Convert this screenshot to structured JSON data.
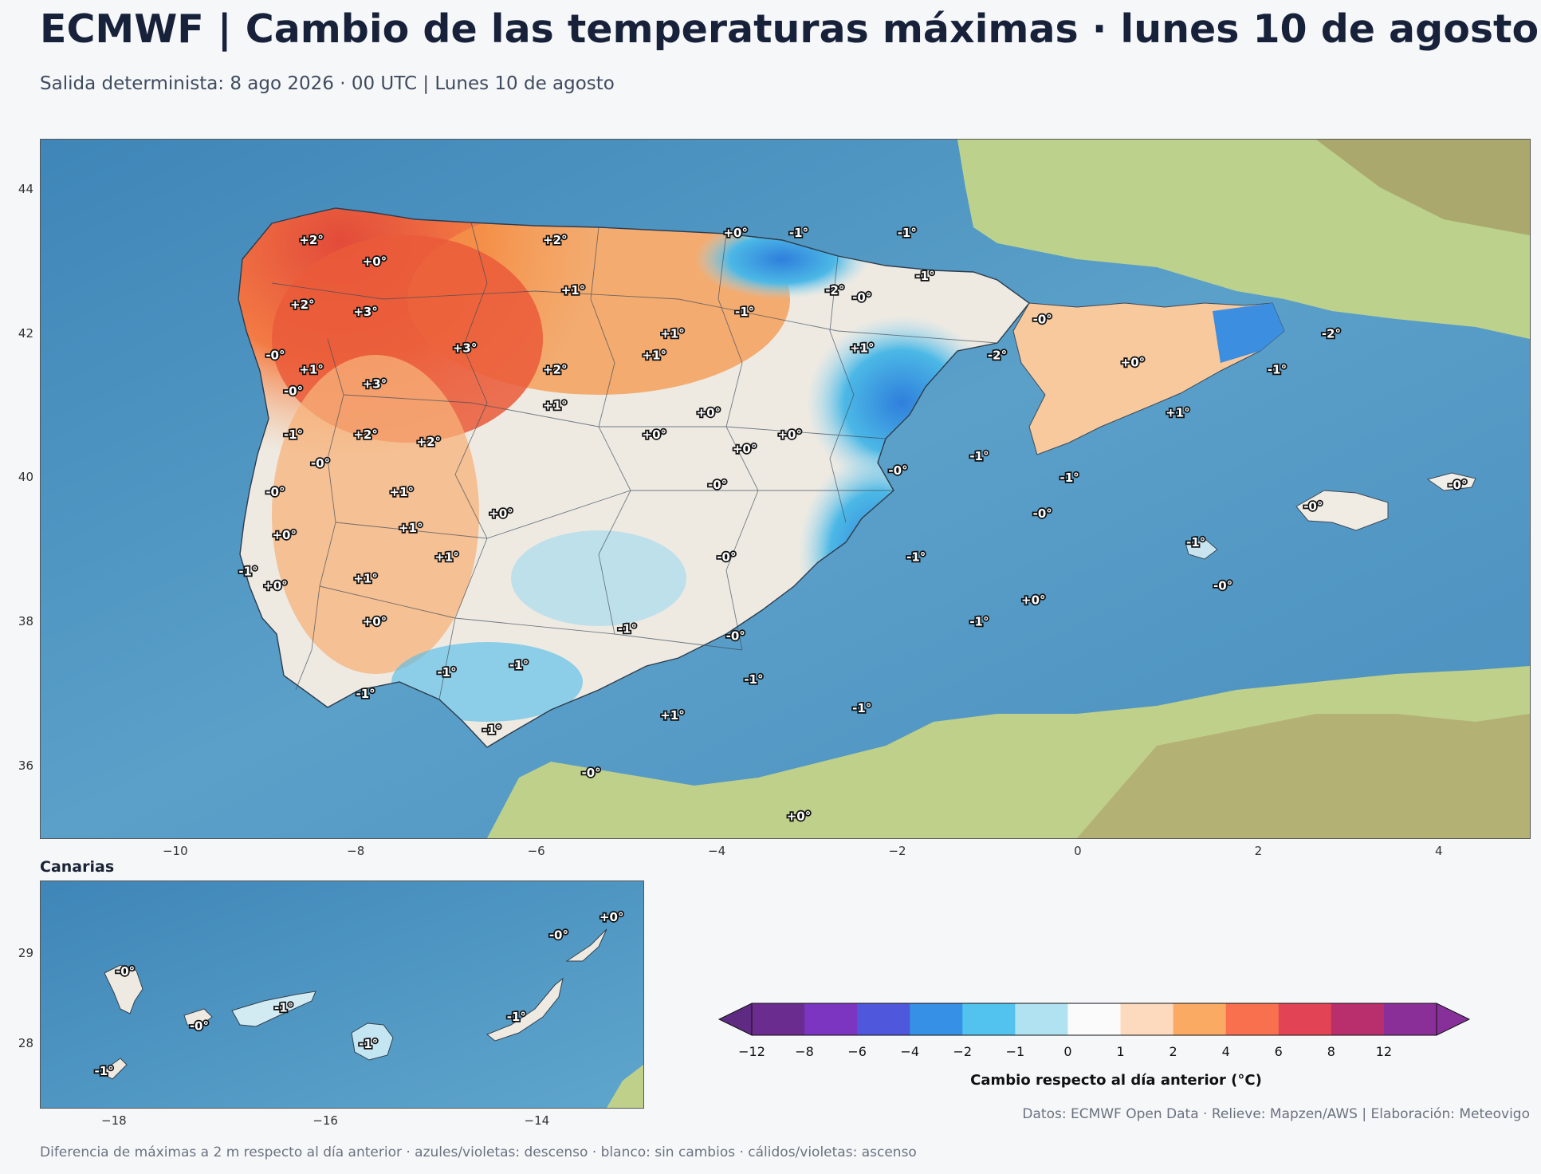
{
  "title": "ECMWF | Cambio de las temperaturas máximas · lunes 10 de agosto",
  "subtitle": "Salida determinista: 8 ago 2026 · 00 UTC  |  Lunes 10 de agosto",
  "main_map": {
    "lon_range": [
      -11.5,
      5.0
    ],
    "lat_range": [
      35.0,
      44.7
    ],
    "x_ticks": [
      "−10",
      "−8",
      "−6",
      "−4",
      "−2",
      "0",
      "2",
      "4"
    ],
    "x_tick_values": [
      -10,
      -8,
      -6,
      -4,
      -2,
      0,
      2,
      4
    ],
    "y_ticks": [
      "36",
      "38",
      "40",
      "42",
      "44"
    ],
    "y_tick_values": [
      36,
      38,
      40,
      42,
      44
    ],
    "labels": [
      {
        "text": "+2°",
        "lon": -8.5,
        "lat": 43.3
      },
      {
        "text": "+0°",
        "lon": -7.8,
        "lat": 43.0
      },
      {
        "text": "+2°",
        "lon": -5.8,
        "lat": 43.3
      },
      {
        "text": "+0°",
        "lon": -3.8,
        "lat": 43.4
      },
      {
        "text": "-1°",
        "lon": -3.1,
        "lat": 43.4
      },
      {
        "text": "-1°",
        "lon": -1.9,
        "lat": 43.4
      },
      {
        "text": "-1°",
        "lon": -1.7,
        "lat": 42.8
      },
      {
        "text": "-2°",
        "lon": -2.7,
        "lat": 42.6
      },
      {
        "text": "-0°",
        "lon": -2.4,
        "lat": 42.5
      },
      {
        "text": "+1°",
        "lon": -5.6,
        "lat": 42.6
      },
      {
        "text": "-1°",
        "lon": -3.7,
        "lat": 42.3
      },
      {
        "text": "+2°",
        "lon": -8.6,
        "lat": 42.4
      },
      {
        "text": "+3°",
        "lon": -7.9,
        "lat": 42.3
      },
      {
        "text": "+1°",
        "lon": -4.5,
        "lat": 42.0
      },
      {
        "text": "-0°",
        "lon": -0.4,
        "lat": 42.2
      },
      {
        "text": "-2°",
        "lon": 2.8,
        "lat": 42.0
      },
      {
        "text": "+3°",
        "lon": -6.8,
        "lat": 41.8
      },
      {
        "text": "+1°",
        "lon": -2.4,
        "lat": 41.8
      },
      {
        "text": "-0°",
        "lon": -8.9,
        "lat": 41.7
      },
      {
        "text": "+1°",
        "lon": -8.5,
        "lat": 41.5
      },
      {
        "text": "+1°",
        "lon": -4.7,
        "lat": 41.7
      },
      {
        "text": "+2°",
        "lon": -5.8,
        "lat": 41.5
      },
      {
        "text": "-2°",
        "lon": -0.9,
        "lat": 41.7
      },
      {
        "text": "+0°",
        "lon": 0.6,
        "lat": 41.6
      },
      {
        "text": "-1°",
        "lon": 2.2,
        "lat": 41.5
      },
      {
        "text": "+3°",
        "lon": -7.8,
        "lat": 41.3
      },
      {
        "text": "-0°",
        "lon": -8.7,
        "lat": 41.2
      },
      {
        "text": "+1°",
        "lon": -5.8,
        "lat": 41.0
      },
      {
        "text": "+0°",
        "lon": -4.1,
        "lat": 40.9
      },
      {
        "text": "+1°",
        "lon": 1.1,
        "lat": 40.9
      },
      {
        "text": "-1°",
        "lon": -8.7,
        "lat": 40.6
      },
      {
        "text": "+2°",
        "lon": -7.9,
        "lat": 40.6
      },
      {
        "text": "+2°",
        "lon": -7.2,
        "lat": 40.5
      },
      {
        "text": "+0°",
        "lon": -4.7,
        "lat": 40.6
      },
      {
        "text": "+0°",
        "lon": -3.2,
        "lat": 40.6
      },
      {
        "text": "+0°",
        "lon": -3.7,
        "lat": 40.4
      },
      {
        "text": "-0°",
        "lon": -8.4,
        "lat": 40.2
      },
      {
        "text": "-1°",
        "lon": -1.1,
        "lat": 40.3
      },
      {
        "text": "-0°",
        "lon": -2.0,
        "lat": 40.1
      },
      {
        "text": "-1°",
        "lon": -0.1,
        "lat": 40.0
      },
      {
        "text": "-0°",
        "lon": 4.2,
        "lat": 39.9
      },
      {
        "text": "+1°",
        "lon": -7.5,
        "lat": 39.8
      },
      {
        "text": "-0°",
        "lon": -4.0,
        "lat": 39.9
      },
      {
        "text": "-0°",
        "lon": -8.9,
        "lat": 39.8
      },
      {
        "text": "+0°",
        "lon": -6.4,
        "lat": 39.5
      },
      {
        "text": "-0°",
        "lon": -0.4,
        "lat": 39.5
      },
      {
        "text": "-0°",
        "lon": 2.6,
        "lat": 39.6
      },
      {
        "text": "+1°",
        "lon": -7.4,
        "lat": 39.3
      },
      {
        "text": "+0°",
        "lon": -8.8,
        "lat": 39.2
      },
      {
        "text": "-1°",
        "lon": 1.3,
        "lat": 39.1
      },
      {
        "text": "-0°",
        "lon": -3.9,
        "lat": 38.9
      },
      {
        "text": "-1°",
        "lon": -1.8,
        "lat": 38.9
      },
      {
        "text": "+1°",
        "lon": -7.0,
        "lat": 38.9
      },
      {
        "text": "-1°",
        "lon": -9.2,
        "lat": 38.7
      },
      {
        "text": "+0°",
        "lon": -8.9,
        "lat": 38.5
      },
      {
        "text": "+1°",
        "lon": -7.9,
        "lat": 38.6
      },
      {
        "text": "-0°",
        "lon": 1.6,
        "lat": 38.5
      },
      {
        "text": "+0°",
        "lon": -0.5,
        "lat": 38.3
      },
      {
        "text": "+0°",
        "lon": -7.8,
        "lat": 38.0
      },
      {
        "text": "-1°",
        "lon": -5.0,
        "lat": 37.9
      },
      {
        "text": "-0°",
        "lon": -3.8,
        "lat": 37.8
      },
      {
        "text": "-1°",
        "lon": -1.1,
        "lat": 38.0
      },
      {
        "text": "-1°",
        "lon": -6.2,
        "lat": 37.4
      },
      {
        "text": "-1°",
        "lon": -7.0,
        "lat": 37.3
      },
      {
        "text": "-1°",
        "lon": -3.6,
        "lat": 37.2
      },
      {
        "text": "-1°",
        "lon": -7.9,
        "lat": 37.0
      },
      {
        "text": "-1°",
        "lon": -2.4,
        "lat": 36.8
      },
      {
        "text": "+1°",
        "lon": -4.5,
        "lat": 36.7
      },
      {
        "text": "-1°",
        "lon": -6.5,
        "lat": 36.5
      },
      {
        "text": "-0°",
        "lon": -5.4,
        "lat": 35.9
      },
      {
        "text": "+0°",
        "lon": -3.1,
        "lat": 35.3
      }
    ]
  },
  "inset": {
    "title": "Canarias",
    "lon_range": [
      -18.7,
      -13.0
    ],
    "lat_range": [
      27.3,
      29.8
    ],
    "x_ticks": [
      "−18",
      "−16",
      "−14"
    ],
    "x_tick_values": [
      -18,
      -16,
      -14
    ],
    "y_ticks": [
      "28",
      "29"
    ],
    "y_tick_values": [
      28,
      29
    ],
    "labels": [
      {
        "text": "+0°",
        "lon": -13.3,
        "lat": 29.4
      },
      {
        "text": "-0°",
        "lon": -13.8,
        "lat": 29.2
      },
      {
        "text": "-0°",
        "lon": -17.9,
        "lat": 28.8
      },
      {
        "text": "-1°",
        "lon": -16.4,
        "lat": 28.4
      },
      {
        "text": "-0°",
        "lon": -17.2,
        "lat": 28.2
      },
      {
        "text": "-1°",
        "lon": -14.2,
        "lat": 28.3
      },
      {
        "text": "-1°",
        "lon": -15.6,
        "lat": 28.0
      },
      {
        "text": "-1°",
        "lon": -18.1,
        "lat": 27.7
      }
    ]
  },
  "colorbar": {
    "label": "Cambio respecto al día anterior (°C)",
    "bounds": [
      -12,
      -8,
      -6,
      -4,
      -2,
      -1,
      0,
      1,
      2,
      4,
      6,
      8,
      12
    ],
    "tick_labels": [
      "−12",
      "−8",
      "−6",
      "−4",
      "−2",
      "−1",
      "0",
      "1",
      "2",
      "4",
      "6",
      "8",
      "12"
    ],
    "colors": [
      "#6a2c8e",
      "#7b35c0",
      "#4f57dc",
      "#3590e6",
      "#52c2ee",
      "#b0e2f2",
      "#fbfbfb",
      "#fdd9bd",
      "#fbaa64",
      "#f9704e",
      "#e24455",
      "#b92e6c",
      "#8a2f98"
    ],
    "under_color": "#5e2a82",
    "over_color": "#88309a"
  },
  "credits": "Datos: ECMWF Open Data · Relieve: Mapzen/AWS  |  Elaboración: Meteovigo",
  "footer": "Diferencia de máximas a 2 m respecto al día anterior · azules/violetas: descenso · blanco: sin cambios · cálidos/violetas: ascenso"
}
